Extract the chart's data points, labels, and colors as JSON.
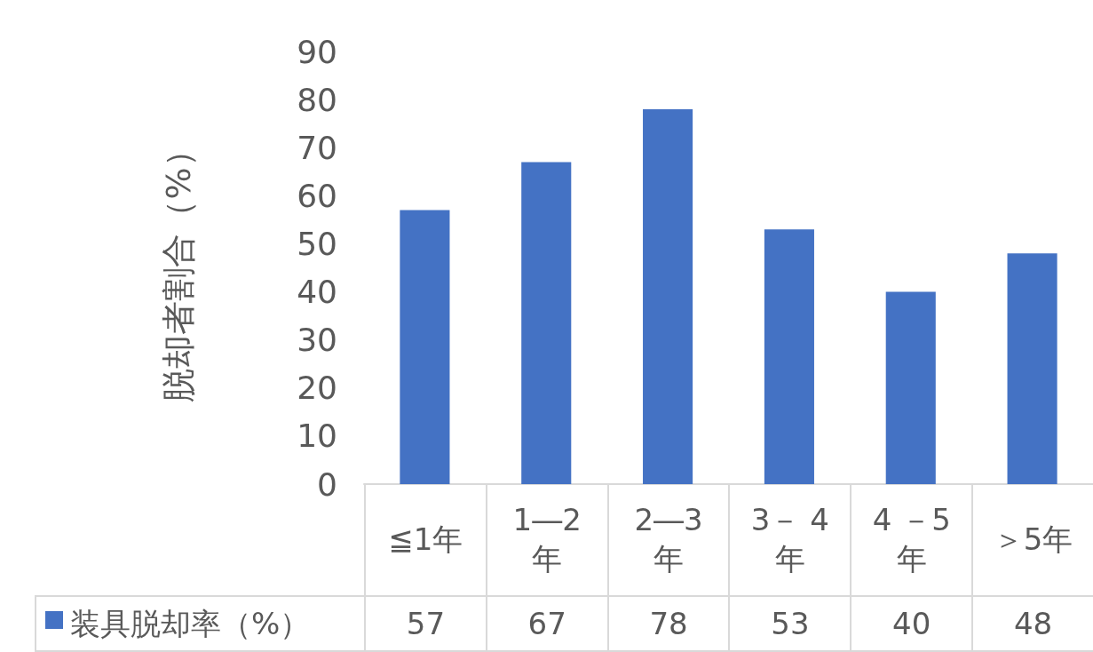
{
  "chart_data": {
    "type": "bar",
    "ylabel": "脱却者割合（%）",
    "categories": [
      "≦1年",
      "1―2年",
      "2―3年",
      "3－ 4年",
      "4 －5年",
      "＞5年"
    ],
    "series": [
      {
        "name": "装具脱却率（%）",
        "color": "#4472c4",
        "values": [
          57,
          67,
          78,
          53,
          40,
          48
        ]
      }
    ],
    "ylim": [
      0,
      90
    ],
    "yticks": [
      0,
      10,
      20,
      30,
      40,
      50,
      60,
      70,
      80,
      90
    ],
    "grid": false,
    "legend": "bottom",
    "data_labels": true
  }
}
